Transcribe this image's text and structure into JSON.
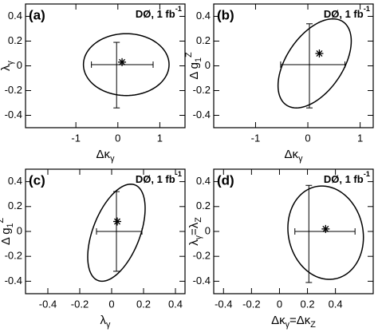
{
  "chart_data": [
    {
      "type": "scatter",
      "color": "#000000",
      "panel_label": "(a)",
      "note": [
        {
          "text": "DØ, 1 fb"
        },
        {
          "sup": "-1"
        }
      ],
      "xlabel": [
        {
          "text": "Δκ"
        },
        {
          "sub": "γ"
        }
      ],
      "ylabel": [
        {
          "text": "λ"
        },
        {
          "sub": "γ"
        }
      ],
      "xlim": [
        -2.2,
        1.6
      ],
      "xticks": [
        -1,
        0,
        1
      ],
      "ylim": [
        -0.5,
        0.5
      ],
      "yticks": [
        -0.4,
        -0.2,
        0,
        0.2,
        0.4
      ],
      "point": {
        "x": 0.1,
        "y": 0.03
      },
      "x_interval": {
        "y": 0.01,
        "range": [
          -0.63,
          0.84
        ]
      },
      "y_interval": {
        "x": -0.03,
        "range": [
          -0.34,
          0.19
        ]
      },
      "ellipse": {
        "center": [
          0.2,
          0.01
        ],
        "half_width": [
          1.02,
          0.25
        ],
        "correlation": 0
      }
    },
    {
      "type": "scatter",
      "color": "#000000",
      "panel_label": "(b)",
      "note": [
        {
          "text": "DØ, 1 fb"
        },
        {
          "sup": "-1"
        }
      ],
      "xlabel": [
        {
          "text": "Δκ"
        },
        {
          "sub": "γ"
        }
      ],
      "ylabel": [
        {
          "text": "Δ g"
        },
        {
          "sub": "1"
        },
        {
          "sup": "Z"
        }
      ],
      "xlim": [
        -1.8,
        1.25
      ],
      "xticks": [
        -1,
        0,
        1
      ],
      "ylim": [
        -0.5,
        0.5
      ],
      "yticks": [
        -0.4,
        -0.2,
        0,
        0.2,
        0.4
      ],
      "point": {
        "x": 0.22,
        "y": 0.1
      },
      "x_interval": {
        "y": 0.01,
        "range": [
          -0.52,
          0.71
        ]
      },
      "y_interval": {
        "x": 0.03,
        "range": [
          -0.34,
          0.34
        ]
      },
      "ellipse": {
        "center": [
          0.13,
          0.02
        ],
        "half_width": [
          0.7,
          0.36
        ],
        "correlation": 0.5
      }
    },
    {
      "type": "scatter",
      "color": "#000000",
      "panel_label": "(c)",
      "note": [
        {
          "text": "DØ, 1 fb"
        },
        {
          "sup": "-1"
        }
      ],
      "xlabel": [
        {
          "text": "λ"
        },
        {
          "sub": "γ"
        }
      ],
      "ylabel": [
        {
          "text": "Δ g"
        },
        {
          "sub": "1"
        },
        {
          "sup": "Z"
        }
      ],
      "xlim": [
        -0.54,
        0.46
      ],
      "xticks": [
        -0.4,
        -0.2,
        0,
        0.2,
        0.4
      ],
      "ylim": [
        -0.5,
        0.5
      ],
      "yticks": [
        -0.4,
        -0.2,
        0,
        0.2,
        0.4
      ],
      "point": {
        "x": 0.035,
        "y": 0.08
      },
      "x_interval": {
        "y": 0,
        "range": [
          -0.095,
          0.19
        ]
      },
      "y_interval": {
        "x": 0.03,
        "range": [
          -0.32,
          0.32
        ]
      },
      "ellipse": {
        "center": [
          0.03,
          -0.01
        ],
        "half_width": [
          0.18,
          0.39
        ],
        "correlation": 0.5
      }
    },
    {
      "type": "scatter",
      "color": "#000000",
      "panel_label": "(d)",
      "note": [
        {
          "text": "DØ, 1 fb"
        },
        {
          "sup": "-1"
        }
      ],
      "xlabel": [
        {
          "text": "Δκ"
        },
        {
          "sub": "γ"
        },
        {
          "text": "=Δκ"
        },
        {
          "sub": "Z"
        }
      ],
      "ylabel": [
        {
          "text": "λ"
        },
        {
          "sub": "γ"
        },
        {
          "text": "=λ"
        },
        {
          "sub": "Z"
        }
      ],
      "xlim": [
        -0.47,
        0.67
      ],
      "xticks": [
        -0.4,
        -0.2,
        0,
        0.2,
        0.4
      ],
      "ylim": [
        -0.5,
        0.5
      ],
      "yticks": [
        -0.4,
        -0.2,
        0,
        0.2,
        0.4
      ],
      "point": {
        "x": 0.33,
        "y": 0.02
      },
      "x_interval": {
        "y": 0,
        "range": [
          0.11,
          0.54
        ]
      },
      "y_interval": {
        "x": 0.21,
        "range": [
          -0.41,
          0.37
        ]
      },
      "ellipse": {
        "center": [
          0.33,
          -0.01
        ],
        "half_width": [
          0.27,
          0.375
        ],
        "correlation": -0.1
      }
    }
  ]
}
